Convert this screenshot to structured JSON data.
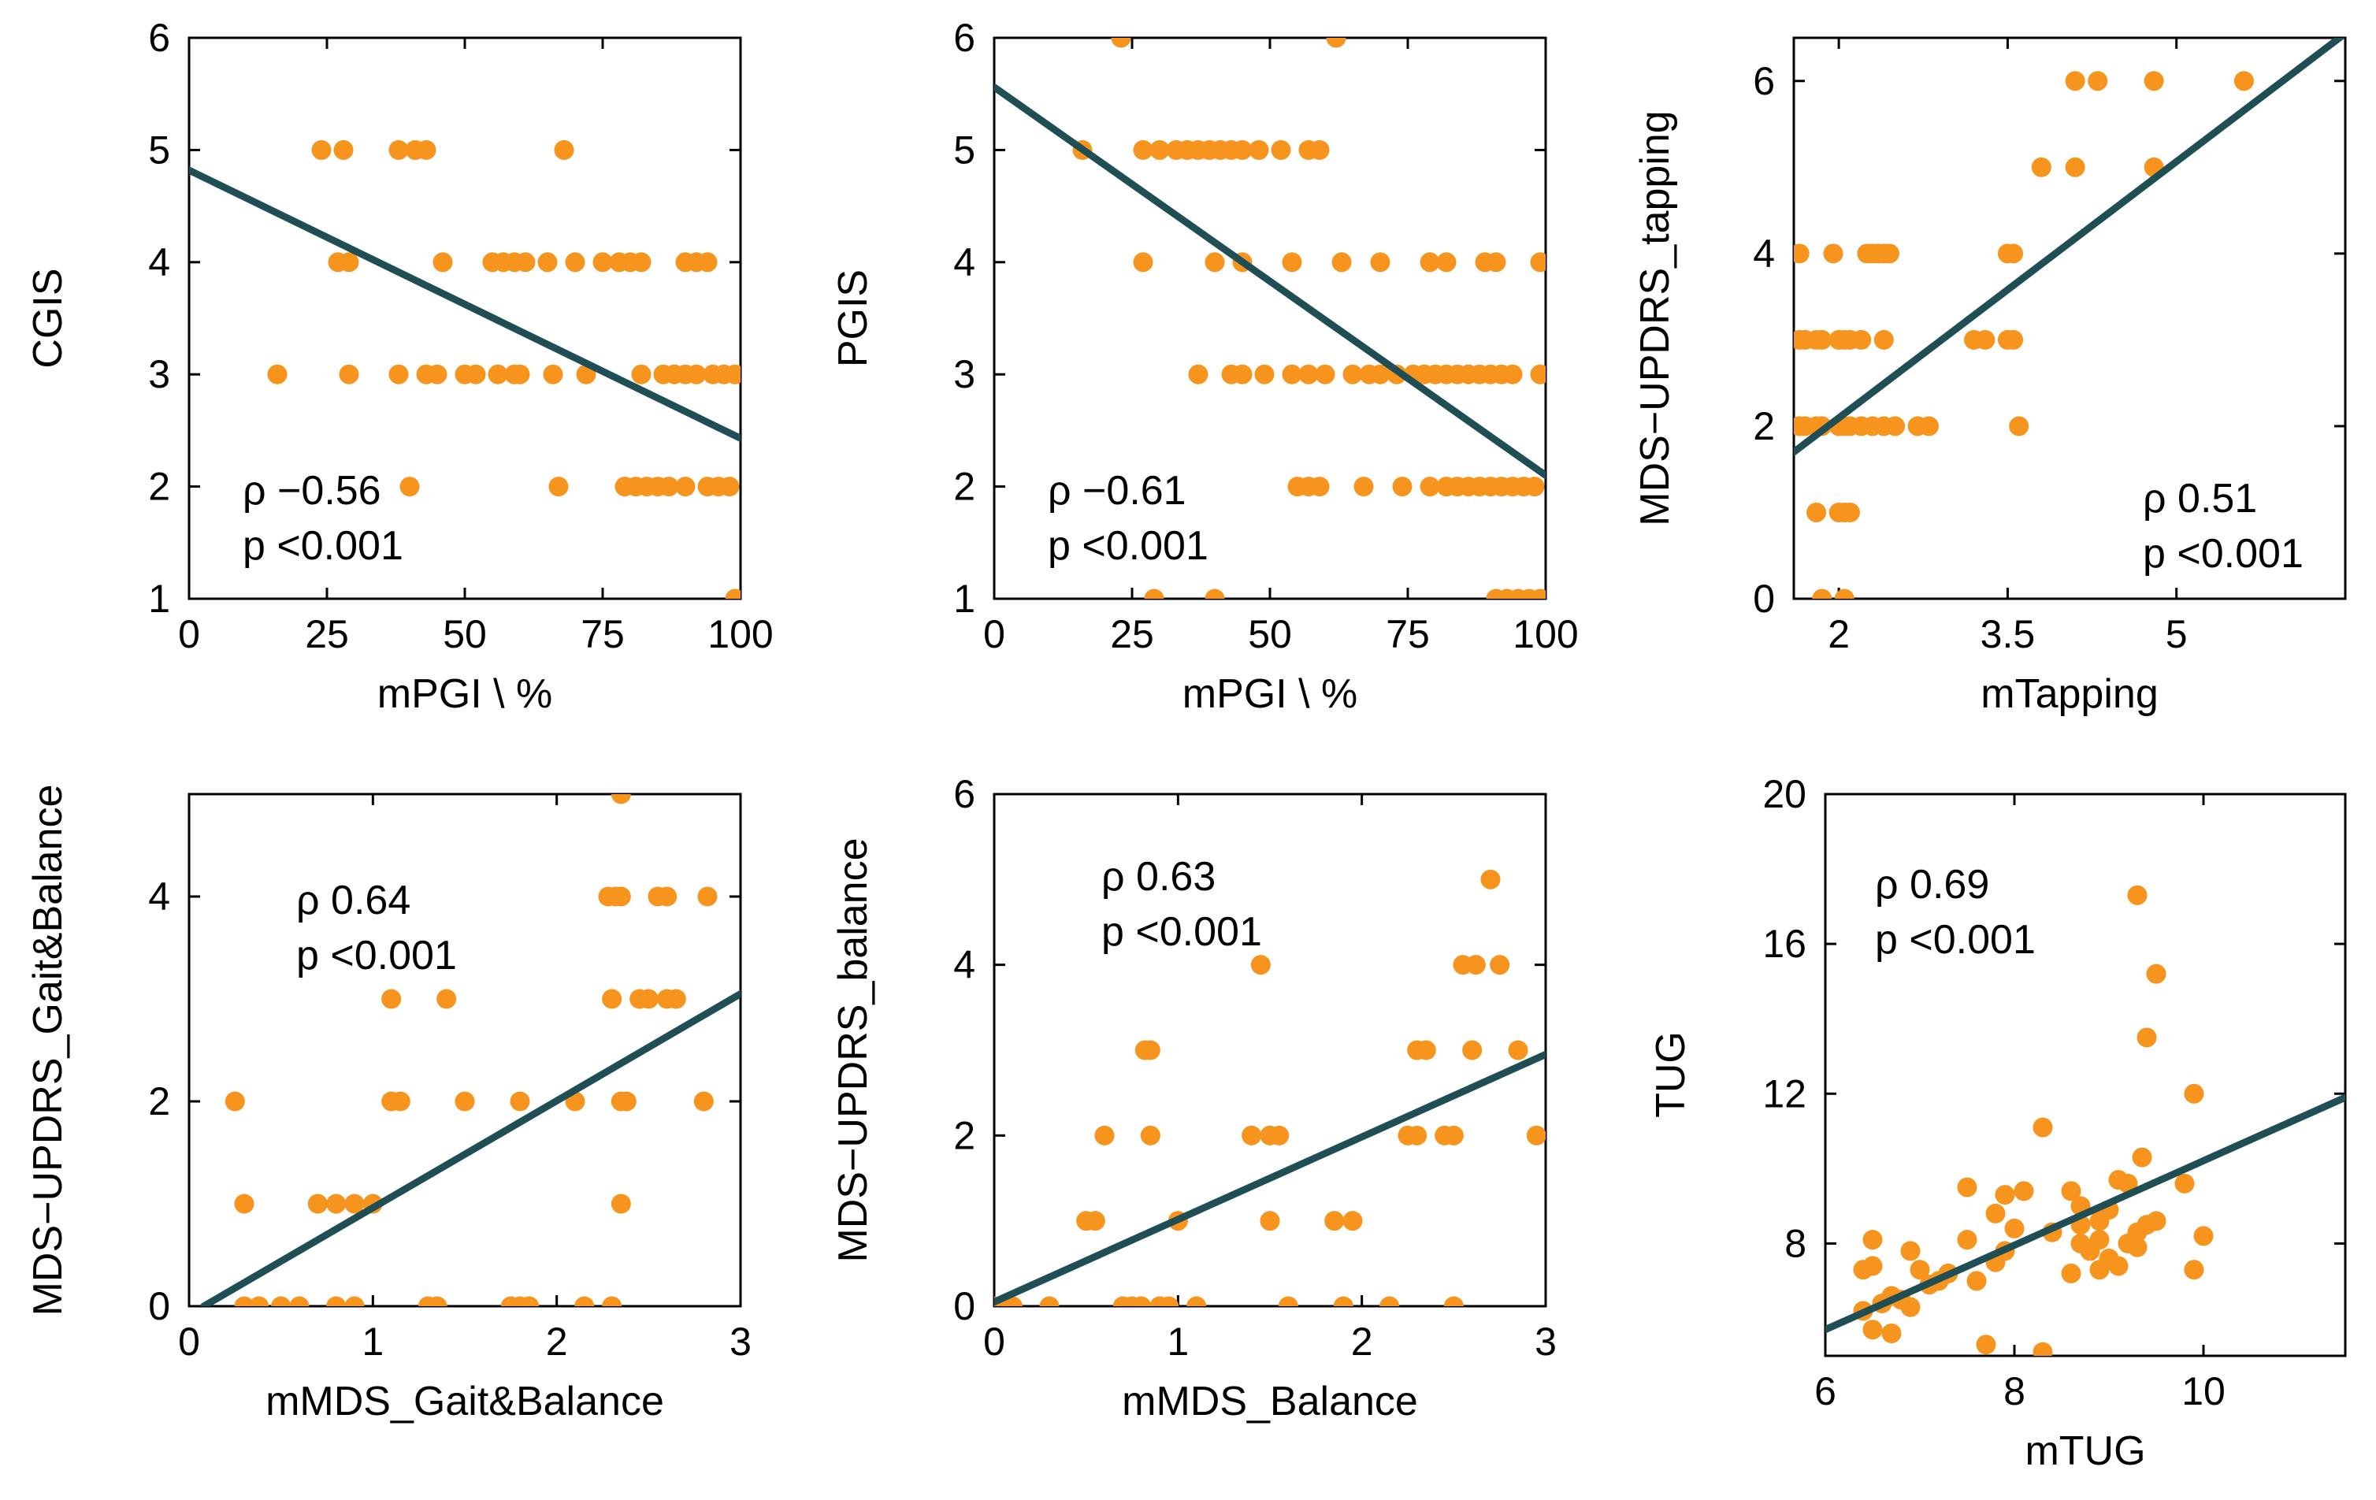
{
  "chart_data": [
    {
      "type": "scatter",
      "xlabel": "mPGI \\ %",
      "ylabel": "CGIS",
      "xlim": [
        0,
        100
      ],
      "ylim": [
        1,
        6
      ],
      "xticks": [
        "0",
        "25",
        "50",
        "75",
        "100"
      ],
      "yticks": [
        "1",
        "2",
        "3",
        "4",
        "5",
        "6"
      ],
      "annotation": [
        "ρ −0.56",
        "p <0.001"
      ],
      "fit": {
        "x": [
          0,
          100
        ],
        "y": [
          4.82,
          2.43
        ]
      },
      "points": [
        [
          24,
          5
        ],
        [
          28,
          5
        ],
        [
          38,
          5
        ],
        [
          41,
          5
        ],
        [
          43,
          5
        ],
        [
          68,
          5
        ],
        [
          27,
          4
        ],
        [
          29,
          4
        ],
        [
          46,
          4
        ],
        [
          55,
          4
        ],
        [
          57,
          4
        ],
        [
          59,
          4
        ],
        [
          61,
          4
        ],
        [
          65,
          4
        ],
        [
          70,
          4
        ],
        [
          75,
          4
        ],
        [
          78,
          4
        ],
        [
          80,
          4
        ],
        [
          82,
          4
        ],
        [
          90,
          4
        ],
        [
          92,
          4
        ],
        [
          94,
          4
        ],
        [
          16,
          3
        ],
        [
          29,
          3
        ],
        [
          38,
          3
        ],
        [
          43,
          3
        ],
        [
          45,
          3
        ],
        [
          50,
          3
        ],
        [
          52,
          3
        ],
        [
          56,
          3
        ],
        [
          59,
          3
        ],
        [
          60,
          3
        ],
        [
          66,
          3
        ],
        [
          72,
          3
        ],
        [
          82,
          3
        ],
        [
          86,
          3
        ],
        [
          88,
          3
        ],
        [
          90,
          3
        ],
        [
          92,
          3
        ],
        [
          95,
          3
        ],
        [
          97,
          3
        ],
        [
          99,
          3
        ],
        [
          40,
          2
        ],
        [
          67,
          2
        ],
        [
          79,
          2
        ],
        [
          81,
          2
        ],
        [
          83,
          2
        ],
        [
          85,
          2
        ],
        [
          87,
          2
        ],
        [
          90,
          2
        ],
        [
          94,
          2
        ],
        [
          96,
          2
        ],
        [
          98,
          2
        ],
        [
          99,
          1
        ]
      ]
    },
    {
      "type": "scatter",
      "xlabel": "mPGI \\ %",
      "ylabel": "PGIS",
      "xlim": [
        0,
        100
      ],
      "ylim": [
        1,
        6
      ],
      "xticks": [
        "0",
        "25",
        "50",
        "75",
        "100"
      ],
      "yticks": [
        "1",
        "2",
        "3",
        "4",
        "5",
        "6"
      ],
      "annotation": [
        "ρ −0.61",
        "p <0.001"
      ],
      "fit": {
        "x": [
          0,
          100
        ],
        "y": [
          5.56,
          2.1
        ]
      },
      "points": [
        [
          23,
          6
        ],
        [
          62,
          6
        ],
        [
          16,
          5
        ],
        [
          27,
          5
        ],
        [
          30,
          5
        ],
        [
          33,
          5
        ],
        [
          35,
          5
        ],
        [
          37,
          5
        ],
        [
          39,
          5
        ],
        [
          41,
          5
        ],
        [
          43,
          5
        ],
        [
          45,
          5
        ],
        [
          48,
          5
        ],
        [
          52,
          5
        ],
        [
          57,
          5
        ],
        [
          59,
          5
        ],
        [
          27,
          4
        ],
        [
          40,
          4
        ],
        [
          45,
          4
        ],
        [
          54,
          4
        ],
        [
          63,
          4
        ],
        [
          70,
          4
        ],
        [
          79,
          4
        ],
        [
          82,
          4
        ],
        [
          89,
          4
        ],
        [
          91,
          4
        ],
        [
          99,
          4
        ],
        [
          37,
          3
        ],
        [
          43,
          3
        ],
        [
          45,
          3
        ],
        [
          49,
          3
        ],
        [
          54,
          3
        ],
        [
          57,
          3
        ],
        [
          60,
          3
        ],
        [
          65,
          3
        ],
        [
          68,
          3
        ],
        [
          70,
          3
        ],
        [
          73,
          3
        ],
        [
          76,
          3
        ],
        [
          78,
          3
        ],
        [
          80,
          3
        ],
        [
          82,
          3
        ],
        [
          84,
          3
        ],
        [
          86,
          3
        ],
        [
          88,
          3
        ],
        [
          90,
          3
        ],
        [
          92,
          3
        ],
        [
          94,
          3
        ],
        [
          99,
          3
        ],
        [
          55,
          2
        ],
        [
          57,
          2
        ],
        [
          59,
          2
        ],
        [
          67,
          2
        ],
        [
          74,
          2
        ],
        [
          79,
          2
        ],
        [
          82,
          2
        ],
        [
          84,
          2
        ],
        [
          86,
          2
        ],
        [
          88,
          2
        ],
        [
          90,
          2
        ],
        [
          92,
          2
        ],
        [
          94,
          2
        ],
        [
          96,
          2
        ],
        [
          98,
          2
        ],
        [
          29,
          1
        ],
        [
          40,
          1
        ],
        [
          91,
          1
        ],
        [
          93,
          1
        ],
        [
          95,
          1
        ],
        [
          97,
          1
        ],
        [
          99,
          1
        ]
      ]
    },
    {
      "type": "scatter",
      "xlabel": "mTapping",
      "ylabel": "MDS−UPDRS_tapping",
      "xlim": [
        1.6,
        6.5
      ],
      "ylim": [
        0,
        6.5
      ],
      "xticks": [
        "2",
        "3.5",
        "5"
      ],
      "xtick_values": [
        2,
        3.5,
        5
      ],
      "yticks": [
        "0",
        "2",
        "4",
        "6"
      ],
      "ytick_values": [
        0,
        2,
        4,
        6
      ],
      "annotation": [
        "ρ 0.51",
        "p <0.001"
      ],
      "fit": {
        "x": [
          1.6,
          6.5
        ],
        "y": [
          1.7,
          6.55
        ]
      },
      "points": [
        [
          1.65,
          4
        ],
        [
          1.95,
          4
        ],
        [
          2.25,
          4
        ],
        [
          2.3,
          4
        ],
        [
          2.35,
          4
        ],
        [
          2.4,
          4
        ],
        [
          2.45,
          4
        ],
        [
          3.5,
          4
        ],
        [
          3.55,
          4
        ],
        [
          1.65,
          3
        ],
        [
          1.7,
          3
        ],
        [
          1.8,
          3
        ],
        [
          1.85,
          3
        ],
        [
          2.0,
          3
        ],
        [
          2.05,
          3
        ],
        [
          2.1,
          3
        ],
        [
          2.2,
          3
        ],
        [
          2.4,
          3
        ],
        [
          3.2,
          3
        ],
        [
          3.3,
          3
        ],
        [
          3.5,
          3
        ],
        [
          3.55,
          3
        ],
        [
          1.65,
          2
        ],
        [
          1.7,
          2
        ],
        [
          1.8,
          2
        ],
        [
          1.85,
          2
        ],
        [
          2.0,
          2
        ],
        [
          2.05,
          2
        ],
        [
          2.1,
          2
        ],
        [
          2.2,
          2
        ],
        [
          2.3,
          2
        ],
        [
          2.4,
          2
        ],
        [
          2.5,
          2
        ],
        [
          2.7,
          2
        ],
        [
          2.8,
          2
        ],
        [
          3.6,
          2
        ],
        [
          1.8,
          1
        ],
        [
          2.0,
          1
        ],
        [
          2.05,
          1
        ],
        [
          2.1,
          1
        ],
        [
          1.85,
          0
        ],
        [
          2.05,
          0
        ],
        [
          3.8,
          5
        ],
        [
          4.1,
          5
        ],
        [
          4.8,
          5
        ],
        [
          4.1,
          6
        ],
        [
          4.3,
          6
        ],
        [
          4.8,
          6
        ],
        [
          5.6,
          6
        ]
      ]
    },
    {
      "type": "scatter",
      "xlabel": "mMDS_Gait&Balance",
      "ylabel": "MDS−UPDRS_Gait&Balance",
      "xlim": [
        0,
        3
      ],
      "ylim": [
        0,
        5
      ],
      "xticks": [
        "0",
        "1",
        "2",
        "3"
      ],
      "yticks": [
        "0",
        "2",
        "4"
      ],
      "ytick_values": [
        0,
        2,
        4
      ],
      "annotation": [
        "ρ 0.64",
        "p <0.001"
      ],
      "fit": {
        "x": [
          0.08,
          3
        ],
        "y": [
          0,
          3.05
        ]
      },
      "points": [
        [
          2.35,
          5
        ],
        [
          2.28,
          4
        ],
        [
          2.32,
          4
        ],
        [
          2.35,
          4
        ],
        [
          2.55,
          4
        ],
        [
          2.6,
          4
        ],
        [
          2.82,
          4
        ],
        [
          1.1,
          3
        ],
        [
          1.4,
          3
        ],
        [
          2.3,
          3
        ],
        [
          2.45,
          3
        ],
        [
          2.5,
          3
        ],
        [
          2.6,
          3
        ],
        [
          2.65,
          3
        ],
        [
          0.25,
          2
        ],
        [
          1.1,
          2
        ],
        [
          1.15,
          2
        ],
        [
          1.5,
          2
        ],
        [
          1.8,
          2
        ],
        [
          2.1,
          2
        ],
        [
          2.35,
          2
        ],
        [
          2.38,
          2
        ],
        [
          2.8,
          2
        ],
        [
          0.3,
          1
        ],
        [
          0.7,
          1
        ],
        [
          0.8,
          1
        ],
        [
          0.9,
          1
        ],
        [
          1.0,
          1
        ],
        [
          2.35,
          1
        ],
        [
          0.3,
          0
        ],
        [
          0.38,
          0
        ],
        [
          0.5,
          0
        ],
        [
          0.6,
          0
        ],
        [
          0.8,
          0
        ],
        [
          0.9,
          0
        ],
        [
          1.3,
          0
        ],
        [
          1.35,
          0
        ],
        [
          1.75,
          0
        ],
        [
          1.8,
          0
        ],
        [
          1.85,
          0
        ],
        [
          2.15,
          0
        ],
        [
          2.3,
          0
        ]
      ]
    },
    {
      "type": "scatter",
      "xlabel": "mMDS_Balance",
      "ylabel": "MDS−UPDRS_balance",
      "xlim": [
        0,
        3
      ],
      "ylim": [
        0,
        6
      ],
      "xticks": [
        "0",
        "1",
        "2",
        "3"
      ],
      "yticks": [
        "0",
        "2",
        "4",
        "6"
      ],
      "ytick_values": [
        0,
        2,
        4,
        6
      ],
      "annotation": [
        "ρ 0.63",
        "p <0.001"
      ],
      "fit": {
        "x": [
          0,
          3
        ],
        "y": [
          0.05,
          2.95
        ]
      },
      "points": [
        [
          2.7,
          5
        ],
        [
          1.45,
          4
        ],
        [
          2.55,
          4
        ],
        [
          2.62,
          4
        ],
        [
          2.75,
          4
        ],
        [
          0.82,
          3
        ],
        [
          0.85,
          3
        ],
        [
          2.3,
          3
        ],
        [
          2.35,
          3
        ],
        [
          2.6,
          3
        ],
        [
          2.85,
          3
        ],
        [
          0.6,
          2
        ],
        [
          0.85,
          2
        ],
        [
          1.4,
          2
        ],
        [
          1.5,
          2
        ],
        [
          1.55,
          2
        ],
        [
          2.25,
          2
        ],
        [
          2.3,
          2
        ],
        [
          2.45,
          2
        ],
        [
          2.5,
          2
        ],
        [
          2.95,
          2
        ],
        [
          0.5,
          1
        ],
        [
          0.55,
          1
        ],
        [
          1.0,
          1
        ],
        [
          1.5,
          1
        ],
        [
          1.85,
          1
        ],
        [
          1.95,
          1
        ],
        [
          0,
          0
        ],
        [
          0.05,
          0
        ],
        [
          0.1,
          0
        ],
        [
          0.3,
          0
        ],
        [
          0.7,
          0
        ],
        [
          0.75,
          0
        ],
        [
          0.8,
          0
        ],
        [
          0.9,
          0
        ],
        [
          0.95,
          0
        ],
        [
          1.1,
          0
        ],
        [
          1.6,
          0
        ],
        [
          1.9,
          0
        ],
        [
          2.15,
          0
        ],
        [
          2.5,
          0
        ]
      ]
    },
    {
      "type": "scatter",
      "xlabel": "mTUG",
      "ylabel": "TUG",
      "xlim": [
        6,
        11.5
      ],
      "ylim": [
        5,
        20
      ],
      "xticks": [
        "6",
        "8",
        "10"
      ],
      "xtick_values": [
        6,
        8,
        10
      ],
      "yticks": [
        "8",
        "12",
        "16",
        "20"
      ],
      "ytick_values": [
        8,
        12,
        16,
        20
      ],
      "annotation": [
        "ρ 0.69",
        "p <0.001"
      ],
      "fit": {
        "x": [
          6,
          11.5
        ],
        "y": [
          5.7,
          11.9
        ]
      },
      "points": [
        [
          9.3,
          17.3
        ],
        [
          9.5,
          15.2
        ],
        [
          9.4,
          13.5
        ],
        [
          9.9,
          12.0
        ],
        [
          8.3,
          11.1
        ],
        [
          9.35,
          10.3
        ],
        [
          9.2,
          9.6
        ],
        [
          9.8,
          9.6
        ],
        [
          7.5,
          9.5
        ],
        [
          8.1,
          9.4
        ],
        [
          8.6,
          9.4
        ],
        [
          7.9,
          9.3
        ],
        [
          9.1,
          9.7
        ],
        [
          8.4,
          8.3
        ],
        [
          9.0,
          8.9
        ],
        [
          8.9,
          8.6
        ],
        [
          8.7,
          8.5
        ],
        [
          8.9,
          8.1
        ],
        [
          8.7,
          8.0
        ],
        [
          8.8,
          7.8
        ],
        [
          9.0,
          7.6
        ],
        [
          9.1,
          7.4
        ],
        [
          9.3,
          8.3
        ],
        [
          9.2,
          8.0
        ],
        [
          9.3,
          7.9
        ],
        [
          9.4,
          8.5
        ],
        [
          9.5,
          8.6
        ],
        [
          10.0,
          8.2
        ],
        [
          9.9,
          7.3
        ],
        [
          7.5,
          8.1
        ],
        [
          7.8,
          7.5
        ],
        [
          7.9,
          7.8
        ],
        [
          8.0,
          8.4
        ],
        [
          7.8,
          8.8
        ],
        [
          7.6,
          7.0
        ],
        [
          7.3,
          7.2
        ],
        [
          7.2,
          7.0
        ],
        [
          7.0,
          7.3
        ],
        [
          7.1,
          6.9
        ],
        [
          6.9,
          7.8
        ],
        [
          6.8,
          6.5
        ],
        [
          6.7,
          6.6
        ],
        [
          6.6,
          6.4
        ],
        [
          6.5,
          7.4
        ],
        [
          6.4,
          7.3
        ],
        [
          6.5,
          8.1
        ],
        [
          6.4,
          6.2
        ],
        [
          6.5,
          5.7
        ],
        [
          6.7,
          5.6
        ],
        [
          6.9,
          6.3
        ],
        [
          7.7,
          5.3
        ],
        [
          8.3,
          5.1
        ],
        [
          8.6,
          7.2
        ],
        [
          8.9,
          7.3
        ],
        [
          8.7,
          9.0
        ]
      ]
    }
  ],
  "colors": {
    "points": "#f7941d",
    "fit": "#1f4e55",
    "axes": "#000000"
  }
}
